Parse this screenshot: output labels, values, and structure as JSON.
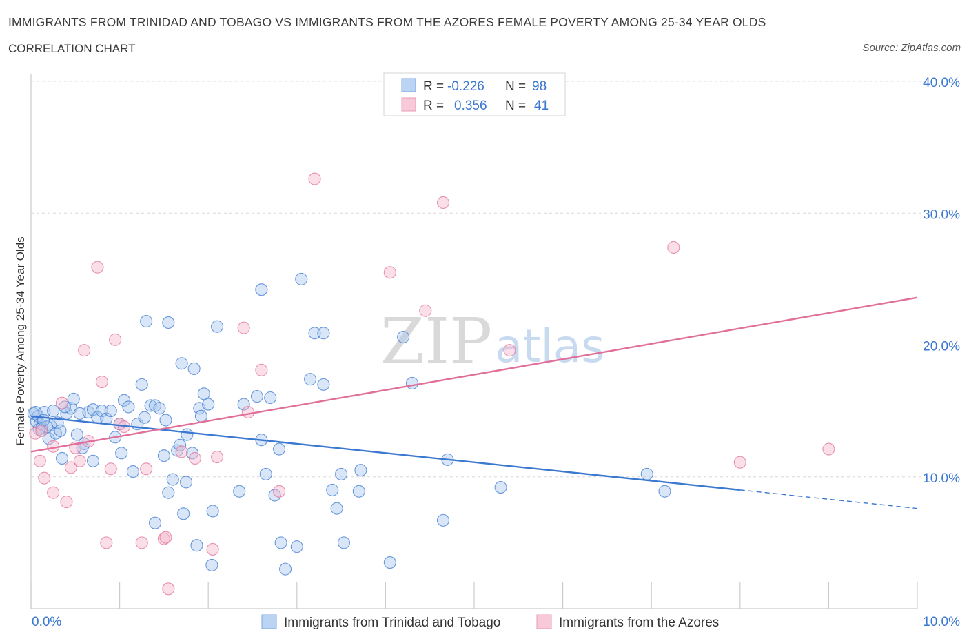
{
  "title": "IMMIGRANTS FROM TRINIDAD AND TOBAGO VS IMMIGRANTS FROM THE AZORES FEMALE POVERTY AMONG 25-34 YEAR OLDS",
  "subtitle": "CORRELATION CHART",
  "source": "Source: ZipAtlas.com",
  "watermark": {
    "zip": "ZIP",
    "atlas": "atlas"
  },
  "colors": {
    "blue": "#3b78d0",
    "blue_fill": "#a9c7ee",
    "pink": "#e0709a",
    "pink_fill": "#f4b8cc",
    "grid": "#d8d8d8"
  },
  "stats": {
    "r_label": "R =",
    "n_label": "N =",
    "blue": {
      "r": "-0.226",
      "n": "98"
    },
    "pink": {
      "r": "0.356",
      "n": "41"
    }
  },
  "chart_data": {
    "type": "scatter",
    "xlabel": "",
    "ylabel": "Female Poverty Among 25-34 Year Olds",
    "xlim": [
      0,
      10
    ],
    "ylim": [
      0,
      40
    ],
    "x_tick_labels": [
      {
        "value": 0,
        "label": "0.0%"
      },
      {
        "value": 10,
        "label": "10.0%"
      }
    ],
    "y_tick_labels": [
      {
        "value": 10,
        "label": "10.0%"
      },
      {
        "value": 20,
        "label": "20.0%"
      },
      {
        "value": 30,
        "label": "30.0%"
      },
      {
        "value": 40,
        "label": "40.0%"
      }
    ],
    "legend": [
      "Immigrants from Trinidad and Tobago",
      "Immigrants from the Azores"
    ],
    "series": [
      {
        "name": "Immigrants from Trinidad and Tobago",
        "color": "blue",
        "trend": {
          "x0": 0,
          "y0": 14.6,
          "x1": 8.0,
          "y1": 9.0,
          "dash_x1": 10.0,
          "dash_y1": 7.6
        },
        "points": [
          [
            0.03,
            14.8
          ],
          [
            0.06,
            14.2
          ],
          [
            0.08,
            14.6
          ],
          [
            0.1,
            14.0
          ],
          [
            0.12,
            13.7
          ],
          [
            0.15,
            14.9
          ],
          [
            0.18,
            13.8
          ],
          [
            0.2,
            12.9
          ],
          [
            0.22,
            13.9
          ],
          [
            0.25,
            15.0
          ],
          [
            0.28,
            13.3
          ],
          [
            0.3,
            14.1
          ],
          [
            0.33,
            13.5
          ],
          [
            0.35,
            11.4
          ],
          [
            0.4,
            14.8
          ],
          [
            0.45,
            15.2
          ],
          [
            0.48,
            15.9
          ],
          [
            0.52,
            13.2
          ],
          [
            0.55,
            14.8
          ],
          [
            0.6,
            12.5
          ],
          [
            0.65,
            14.9
          ],
          [
            0.7,
            11.2
          ],
          [
            0.7,
            15.1
          ],
          [
            0.75,
            14.5
          ],
          [
            0.8,
            15.0
          ],
          [
            0.85,
            14.4
          ],
          [
            0.9,
            15.0
          ],
          [
            0.95,
            13.0
          ],
          [
            1.0,
            14.0
          ],
          [
            1.02,
            11.8
          ],
          [
            1.05,
            15.8
          ],
          [
            1.1,
            15.3
          ],
          [
            1.15,
            10.4
          ],
          [
            1.2,
            14.0
          ],
          [
            1.25,
            17.0
          ],
          [
            1.28,
            14.5
          ],
          [
            1.3,
            21.8
          ],
          [
            1.35,
            15.4
          ],
          [
            1.4,
            15.4
          ],
          [
            1.4,
            6.5
          ],
          [
            1.45,
            15.2
          ],
          [
            1.5,
            11.6
          ],
          [
            1.52,
            14.3
          ],
          [
            1.55,
            8.8
          ],
          [
            1.55,
            21.7
          ],
          [
            1.6,
            9.8
          ],
          [
            1.65,
            12.0
          ],
          [
            1.68,
            12.4
          ],
          [
            1.7,
            18.6
          ],
          [
            1.72,
            7.2
          ],
          [
            1.75,
            9.6
          ],
          [
            1.76,
            13.2
          ],
          [
            1.82,
            11.8
          ],
          [
            1.84,
            18.2
          ],
          [
            1.87,
            4.8
          ],
          [
            1.9,
            15.2
          ],
          [
            1.92,
            14.6
          ],
          [
            1.95,
            16.3
          ],
          [
            2.0,
            15.5
          ],
          [
            2.04,
            3.3
          ],
          [
            2.05,
            7.4
          ],
          [
            2.1,
            21.4
          ],
          [
            2.35,
            8.9
          ],
          [
            2.4,
            15.5
          ],
          [
            2.55,
            16.1
          ],
          [
            2.6,
            12.8
          ],
          [
            2.6,
            24.2
          ],
          [
            2.65,
            10.2
          ],
          [
            2.7,
            16.0
          ],
          [
            2.75,
            8.6
          ],
          [
            2.8,
            12.1
          ],
          [
            2.82,
            5.0
          ],
          [
            2.87,
            3.0
          ],
          [
            3.0,
            4.7
          ],
          [
            3.05,
            25.0
          ],
          [
            3.15,
            17.4
          ],
          [
            3.2,
            20.9
          ],
          [
            3.3,
            17.0
          ],
          [
            3.3,
            20.9
          ],
          [
            3.4,
            9.0
          ],
          [
            3.45,
            7.6
          ],
          [
            3.5,
            10.2
          ],
          [
            3.53,
            5.0
          ],
          [
            3.7,
            8.9
          ],
          [
            3.72,
            10.5
          ],
          [
            4.05,
            3.5
          ],
          [
            4.2,
            20.6
          ],
          [
            4.3,
            17.1
          ],
          [
            4.65,
            6.7
          ],
          [
            4.7,
            11.3
          ],
          [
            5.3,
            9.2
          ],
          [
            6.95,
            10.2
          ],
          [
            7.15,
            8.9
          ],
          [
            0.05,
            14.9
          ],
          [
            0.09,
            13.6
          ],
          [
            0.14,
            14.3
          ],
          [
            0.38,
            15.3
          ],
          [
            0.58,
            12.2
          ]
        ]
      },
      {
        "name": "Immigrants from the Azores",
        "color": "pink",
        "trend": {
          "x0": 0,
          "y0": 11.9,
          "x1": 10.0,
          "y1": 23.6
        },
        "points": [
          [
            0.05,
            13.3
          ],
          [
            0.1,
            11.2
          ],
          [
            0.15,
            9.9
          ],
          [
            0.25,
            12.3
          ],
          [
            0.25,
            8.8
          ],
          [
            0.35,
            15.6
          ],
          [
            0.4,
            8.1
          ],
          [
            0.45,
            10.7
          ],
          [
            0.5,
            12.2
          ],
          [
            0.55,
            11.2
          ],
          [
            0.6,
            19.6
          ],
          [
            0.65,
            12.7
          ],
          [
            0.75,
            25.9
          ],
          [
            0.8,
            17.2
          ],
          [
            0.85,
            5.0
          ],
          [
            0.9,
            10.6
          ],
          [
            0.95,
            20.4
          ],
          [
            1.0,
            14.0
          ],
          [
            1.05,
            13.8
          ],
          [
            1.25,
            5.0
          ],
          [
            1.3,
            10.6
          ],
          [
            1.5,
            5.3
          ],
          [
            1.52,
            5.4
          ],
          [
            1.55,
            1.5
          ],
          [
            1.7,
            11.9
          ],
          [
            1.85,
            11.4
          ],
          [
            2.05,
            4.5
          ],
          [
            2.1,
            11.5
          ],
          [
            2.4,
            21.3
          ],
          [
            2.45,
            14.9
          ],
          [
            2.6,
            18.1
          ],
          [
            2.8,
            8.9
          ],
          [
            3.2,
            32.6
          ],
          [
            4.05,
            25.5
          ],
          [
            4.45,
            22.6
          ],
          [
            4.65,
            30.8
          ],
          [
            5.4,
            19.6
          ],
          [
            7.25,
            27.4
          ],
          [
            8.0,
            11.1
          ],
          [
            9.0,
            12.1
          ],
          [
            0.12,
            13.5
          ]
        ]
      }
    ]
  }
}
